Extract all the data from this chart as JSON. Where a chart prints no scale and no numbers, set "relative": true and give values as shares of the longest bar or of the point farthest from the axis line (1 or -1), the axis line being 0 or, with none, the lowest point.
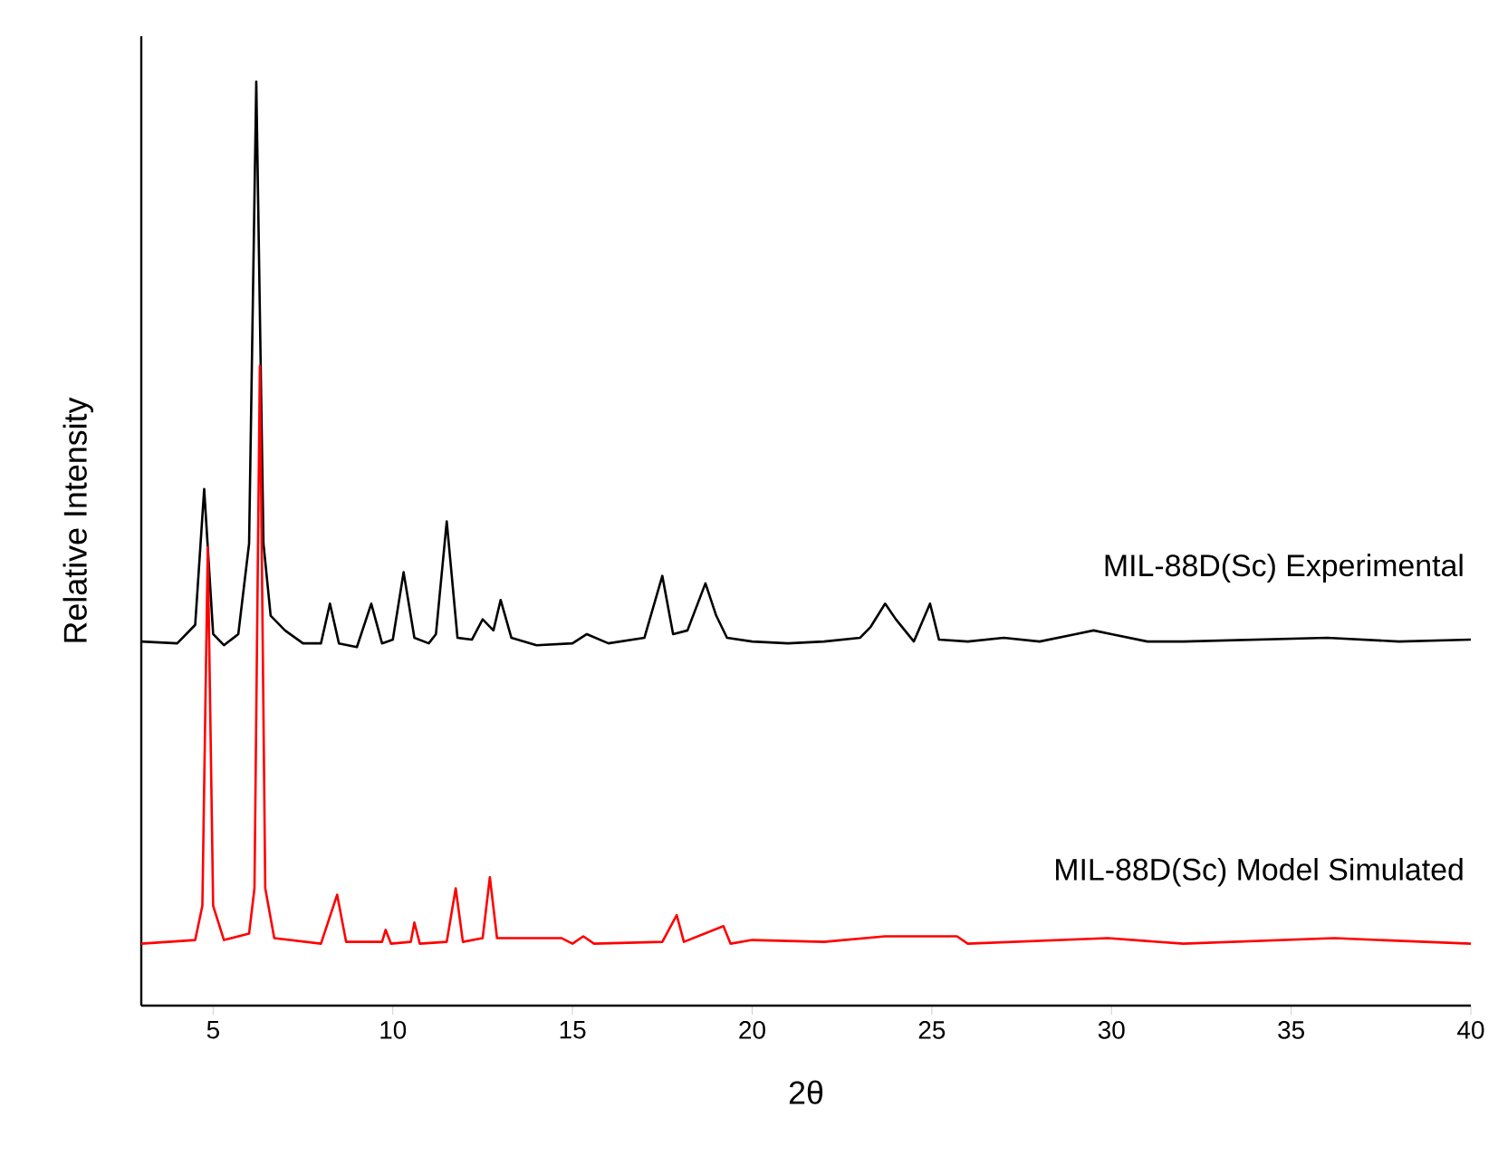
{
  "chart_data": {
    "type": "line",
    "relative": true,
    "xlabel": "2θ",
    "ylabel": "Relative Intensity",
    "xlim": [
      3,
      40
    ],
    "xticks": [
      5,
      10,
      15,
      20,
      25,
      30,
      35,
      40
    ],
    "grid": false,
    "series": [
      {
        "name": "MIL-88D(Sc) Experimental",
        "color": "#000000",
        "x": [
          3,
          4,
          4.5,
          4.75,
          5,
          5.3,
          5.7,
          6,
          6.2,
          6.4,
          6.6,
          7,
          7.5,
          8,
          8.25,
          8.5,
          9,
          9.4,
          9.7,
          10,
          10.3,
          10.6,
          11,
          11.2,
          11.5,
          11.8,
          12.2,
          12.5,
          12.8,
          13,
          13.3,
          14,
          15,
          15.4,
          16,
          17,
          17.5,
          17.8,
          18.2,
          18.7,
          19,
          19.3,
          20,
          21,
          22,
          23,
          23.3,
          23.7,
          24,
          24.5,
          24.95,
          25.2,
          26,
          27,
          28,
          29,
          29.5,
          30,
          31,
          32,
          34,
          36,
          38,
          40
        ],
        "values": [
          0.394,
          0.392,
          0.412,
          0.559,
          0.402,
          0.39,
          0.402,
          0.5,
          1,
          0.5,
          0.422,
          0.406,
          0.392,
          0.392,
          0.435,
          0.392,
          0.388,
          0.435,
          0.392,
          0.396,
          0.469,
          0.398,
          0.392,
          0.402,
          0.524,
          0.398,
          0.396,
          0.418,
          0.406,
          0.439,
          0.398,
          0.39,
          0.392,
          0.402,
          0.392,
          0.398,
          0.465,
          0.402,
          0.406,
          0.457,
          0.422,
          0.398,
          0.394,
          0.392,
          0.394,
          0.398,
          0.41,
          0.435,
          0.418,
          0.394,
          0.435,
          0.396,
          0.394,
          0.398,
          0.394,
          0.402,
          0.406,
          0.402,
          0.394,
          0.394,
          0.396,
          0.398,
          0.394,
          0.396
        ]
      },
      {
        "name": "MIL-88D(Sc) Model Simulated",
        "color": "#ff0000",
        "x": [
          3,
          4.5,
          4.7,
          4.85,
          5,
          5.3,
          6,
          6.15,
          6.3,
          6.45,
          6.7,
          8,
          8.45,
          8.7,
          9.7,
          9.8,
          9.95,
          10.5,
          10.6,
          10.75,
          11.5,
          11.75,
          11.95,
          12.5,
          12.7,
          12.9,
          14.7,
          15,
          15.3,
          15.6,
          17.5,
          17.9,
          18.1,
          19.2,
          19.4,
          20,
          22,
          23.7,
          24.2,
          25.7,
          26,
          29.9,
          30.6,
          32,
          36.2,
          40
        ],
        "values": [
          0.067,
          0.071,
          0.108,
          0.496,
          0.108,
          0.071,
          0.078,
          0.127,
          0.692,
          0.127,
          0.073,
          0.067,
          0.12,
          0.069,
          0.069,
          0.082,
          0.067,
          0.069,
          0.09,
          0.067,
          0.069,
          0.127,
          0.069,
          0.073,
          0.139,
          0.073,
          0.073,
          0.067,
          0.075,
          0.067,
          0.069,
          0.098,
          0.069,
          0.086,
          0.067,
          0.071,
          0.069,
          0.075,
          0.075,
          0.075,
          0.067,
          0.073,
          0.071,
          0.067,
          0.073,
          0.067
        ]
      }
    ]
  }
}
